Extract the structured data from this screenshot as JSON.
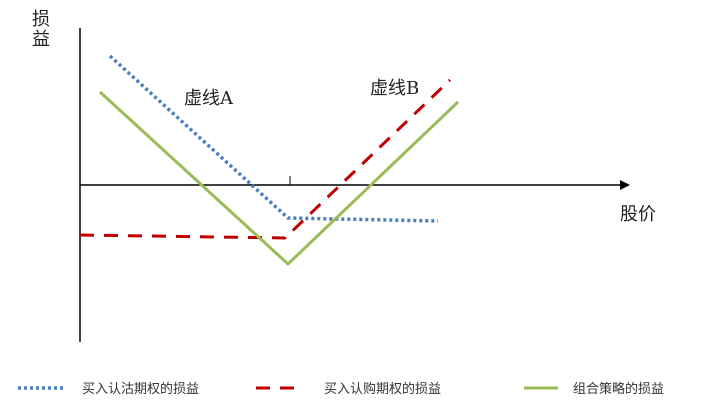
{
  "axes": {
    "y_label": "损益",
    "x_label": "股价"
  },
  "annotations": {
    "line_a": "虚线A",
    "line_b": "虚线B"
  },
  "legend": [
    {
      "label": "买入认沽期权的损益",
      "color": "#4a7ebf",
      "style": "dotted"
    },
    {
      "label": "买入认购期权的损益",
      "color": "#c00000",
      "style": "dashed"
    },
    {
      "label": "组合策略的损益",
      "color": "#9bbb59",
      "style": "solid"
    }
  ]
}
